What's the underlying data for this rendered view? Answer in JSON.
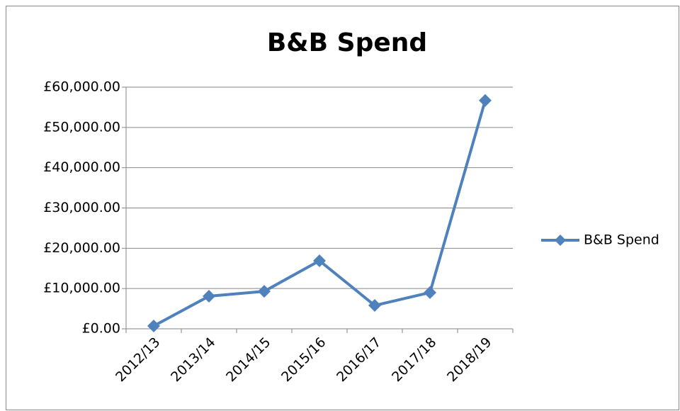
{
  "chart_data": {
    "type": "line",
    "title": "B&B Spend",
    "categories": [
      "2012/13",
      "2013/14",
      "2014/15",
      "2015/16",
      "2016/17",
      "2017/18",
      "2018/19"
    ],
    "series": [
      {
        "name": "B&B Spend",
        "color": "#4f81bd",
        "values": [
          700,
          8100,
          9300,
          16900,
          5800,
          9000,
          56700
        ]
      }
    ],
    "ylim": [
      0,
      60000
    ],
    "yticks": [
      {
        "value": 0,
        "label": "£0.00"
      },
      {
        "value": 10000,
        "label": "£10,000.00"
      },
      {
        "value": 20000,
        "label": "£20,000.00"
      },
      {
        "value": 30000,
        "label": "£30,000.00"
      },
      {
        "value": 40000,
        "label": "£40,000.00"
      },
      {
        "value": 50000,
        "label": "£50,000.00"
      },
      {
        "value": 60000,
        "label": "£60,000.00"
      }
    ],
    "grid": true,
    "legend": "right"
  }
}
